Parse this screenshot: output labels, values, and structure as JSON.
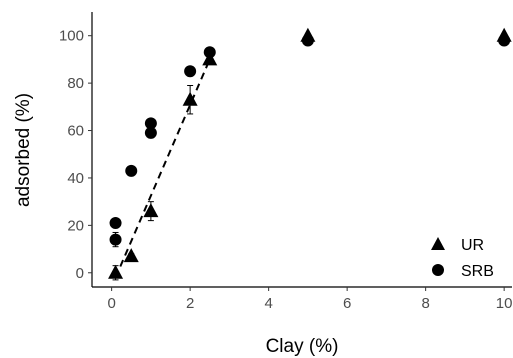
{
  "chart_data": {
    "type": "scatter",
    "xlabel": "Clay (%)",
    "ylabel": "adsorbed (%)",
    "xlim": [
      -0.5,
      10.2
    ],
    "ylim": [
      -6,
      110
    ],
    "x_ticks": [
      0,
      2,
      4,
      6,
      8,
      10
    ],
    "y_ticks": [
      0,
      20,
      40,
      60,
      80,
      100
    ],
    "grid": false,
    "legend_position": "bottom-right",
    "series": [
      {
        "name": "UR",
        "marker": "triangle",
        "x": [
          0.1,
          0.5,
          1,
          2,
          2.5,
          5,
          10
        ],
        "y": [
          0,
          7,
          26,
          73,
          90,
          100,
          100
        ],
        "error": [
          3,
          1,
          4,
          6,
          1,
          0,
          0
        ]
      },
      {
        "name": "SRB",
        "marker": "circle",
        "x": [
          0.1,
          0.1,
          0.5,
          1,
          1,
          2,
          2.5,
          5,
          10
        ],
        "y": [
          21,
          14,
          43,
          59,
          63,
          85,
          93,
          98,
          98
        ],
        "error": [
          0,
          3,
          0,
          2,
          0,
          2,
          0,
          0,
          0
        ]
      }
    ],
    "fit_line": {
      "style": "dashed",
      "x": [
        0.1,
        2.5
      ],
      "y": [
        -2,
        90
      ]
    }
  }
}
